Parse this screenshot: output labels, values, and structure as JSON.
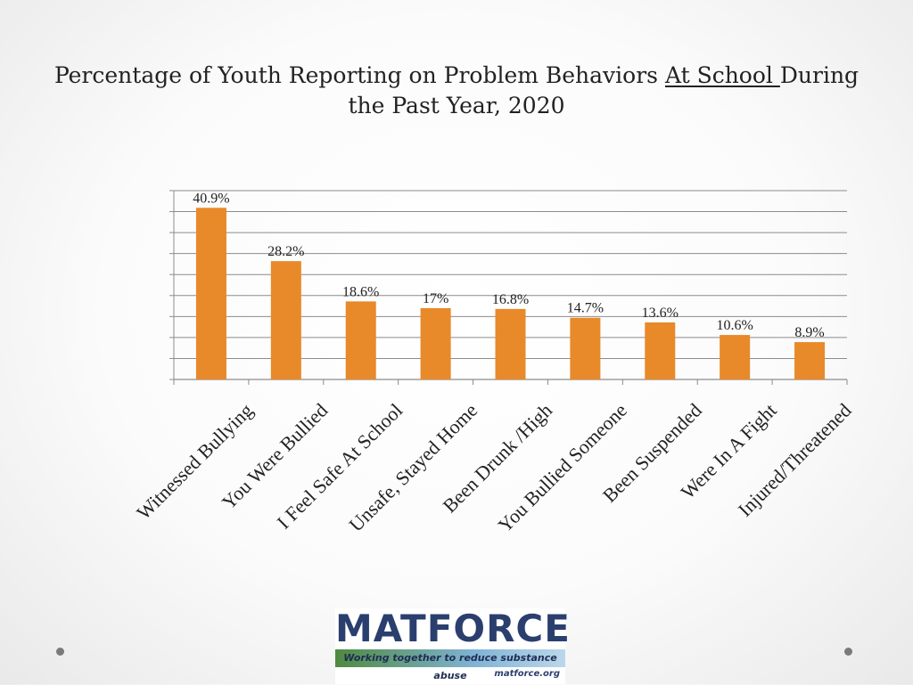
{
  "title": {
    "part1": "Percentage of Youth Reporting on Problem Behaviors",
    "underlined": "At School ",
    "part2": "During the Past Year,  2020"
  },
  "chart_data": {
    "type": "bar",
    "categories": [
      "Witnessed Bullying",
      "You Were Bullied",
      "I Feel Safe At School",
      "Unsafe, Stayed Home",
      "Been Drunk /High",
      "You Bullied Someone",
      "Been Suspended",
      "Were In A Fight",
      "Injured/Threatened"
    ],
    "values": [
      40.9,
      28.2,
      18.6,
      17,
      16.8,
      14.7,
      13.6,
      10.6,
      8.9
    ],
    "data_labels": [
      "40.9%",
      "28.2%",
      "18.6%",
      "17%",
      "16.8%",
      "14.7%",
      "13.6%",
      "10.6%",
      "8.9%"
    ],
    "ylim": [
      0,
      45
    ],
    "y_gridline_step": 5,
    "y_tick_labels_shown": false,
    "grid": true,
    "bar_color": "#E8892A",
    "grid_color": "#8c8c8c"
  },
  "logo": {
    "name": "MATFORCE",
    "tagline": "Working together to reduce substance abuse",
    "url": "matforce.org"
  }
}
